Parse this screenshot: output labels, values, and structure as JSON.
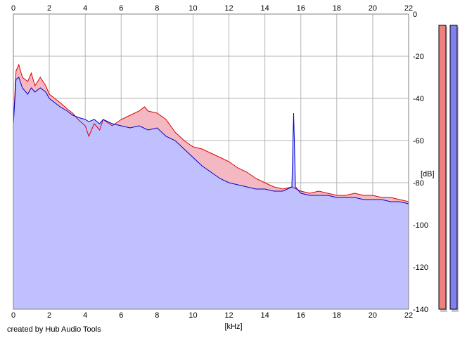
{
  "credit": "created by Hub Audio Tools",
  "chart_data": {
    "type": "area",
    "title": "",
    "xlabel": "[kHz]",
    "ylabel": "[dB]",
    "xlim": [
      0,
      22
    ],
    "ylim": [
      -140,
      0
    ],
    "x_ticks": [
      0,
      2,
      4,
      6,
      8,
      10,
      12,
      14,
      16,
      18,
      20,
      22
    ],
    "y_ticks": [
      0,
      -20,
      -40,
      -60,
      -80,
      -100,
      -120,
      -140
    ],
    "grid": true,
    "series": [
      {
        "color": "#dd0000",
        "fill": "#f4b8c2",
        "points": [
          [
            0,
            -52
          ],
          [
            0.15,
            -27
          ],
          [
            0.3,
            -24
          ],
          [
            0.5,
            -30
          ],
          [
            0.8,
            -32
          ],
          [
            1.0,
            -28
          ],
          [
            1.2,
            -34
          ],
          [
            1.5,
            -30
          ],
          [
            1.8,
            -34
          ],
          [
            2.0,
            -38
          ],
          [
            2.3,
            -40
          ],
          [
            2.6,
            -42
          ],
          [
            3.0,
            -45
          ],
          [
            3.3,
            -47
          ],
          [
            3.6,
            -50
          ],
          [
            4.0,
            -53
          ],
          [
            4.2,
            -58
          ],
          [
            4.5,
            -52
          ],
          [
            4.8,
            -55
          ],
          [
            5.0,
            -50
          ],
          [
            5.5,
            -53
          ],
          [
            6.0,
            -50
          ],
          [
            6.5,
            -48
          ],
          [
            7.0,
            -46
          ],
          [
            7.3,
            -44
          ],
          [
            7.5,
            -46
          ],
          [
            8.0,
            -47
          ],
          [
            8.5,
            -50
          ],
          [
            9.0,
            -56
          ],
          [
            9.5,
            -60
          ],
          [
            10.0,
            -63
          ],
          [
            10.5,
            -64
          ],
          [
            11.0,
            -66
          ],
          [
            11.5,
            -68
          ],
          [
            12.0,
            -70
          ],
          [
            12.5,
            -73
          ],
          [
            13.0,
            -75
          ],
          [
            13.5,
            -78
          ],
          [
            14.0,
            -80
          ],
          [
            14.5,
            -82
          ],
          [
            15.0,
            -83
          ],
          [
            15.5,
            -82
          ],
          [
            16.0,
            -84
          ],
          [
            16.5,
            -85
          ],
          [
            17.0,
            -84
          ],
          [
            17.5,
            -85
          ],
          [
            18.0,
            -86
          ],
          [
            18.5,
            -86
          ],
          [
            19.0,
            -85
          ],
          [
            19.5,
            -86
          ],
          [
            20.0,
            -86
          ],
          [
            20.5,
            -87
          ],
          [
            21.0,
            -87
          ],
          [
            21.5,
            -88
          ],
          [
            22.0,
            -89
          ]
        ]
      },
      {
        "color": "#0000cc",
        "fill": "#c0c0ff",
        "points": [
          [
            0,
            -52
          ],
          [
            0.15,
            -31
          ],
          [
            0.3,
            -30
          ],
          [
            0.5,
            -35
          ],
          [
            0.8,
            -38
          ],
          [
            1.0,
            -35
          ],
          [
            1.2,
            -37
          ],
          [
            1.5,
            -35
          ],
          [
            1.8,
            -37
          ],
          [
            2.0,
            -40
          ],
          [
            2.3,
            -42
          ],
          [
            2.6,
            -44
          ],
          [
            3.0,
            -46
          ],
          [
            3.3,
            -48
          ],
          [
            3.6,
            -49
          ],
          [
            4.0,
            -50
          ],
          [
            4.2,
            -51
          ],
          [
            4.5,
            -50
          ],
          [
            4.8,
            -52
          ],
          [
            5.0,
            -50
          ],
          [
            5.5,
            -52
          ],
          [
            6.0,
            -53
          ],
          [
            6.5,
            -54
          ],
          [
            7.0,
            -53
          ],
          [
            7.5,
            -55
          ],
          [
            8.0,
            -54
          ],
          [
            8.5,
            -58
          ],
          [
            9.0,
            -60
          ],
          [
            9.5,
            -64
          ],
          [
            10.0,
            -68
          ],
          [
            10.5,
            -72
          ],
          [
            11.0,
            -75
          ],
          [
            11.5,
            -78
          ],
          [
            12.0,
            -80
          ],
          [
            12.5,
            -81
          ],
          [
            13.0,
            -82
          ],
          [
            13.5,
            -83
          ],
          [
            14.0,
            -83
          ],
          [
            14.5,
            -84
          ],
          [
            15.0,
            -84
          ],
          [
            15.5,
            -82
          ],
          [
            15.6,
            -47
          ],
          [
            15.7,
            -82
          ],
          [
            16.0,
            -85
          ],
          [
            16.5,
            -86
          ],
          [
            17.0,
            -86
          ],
          [
            17.5,
            -86
          ],
          [
            18.0,
            -87
          ],
          [
            18.5,
            -87
          ],
          [
            19.0,
            -87
          ],
          [
            19.5,
            -88
          ],
          [
            20.0,
            -88
          ],
          [
            20.5,
            -88
          ],
          [
            21.0,
            -89
          ],
          [
            21.5,
            -89
          ],
          [
            22.0,
            -90
          ]
        ]
      }
    ],
    "meters": [
      {
        "color": "#f07f7f",
        "level": 0.024
      },
      {
        "color": "#8080ee",
        "level": 0.024
      }
    ]
  }
}
